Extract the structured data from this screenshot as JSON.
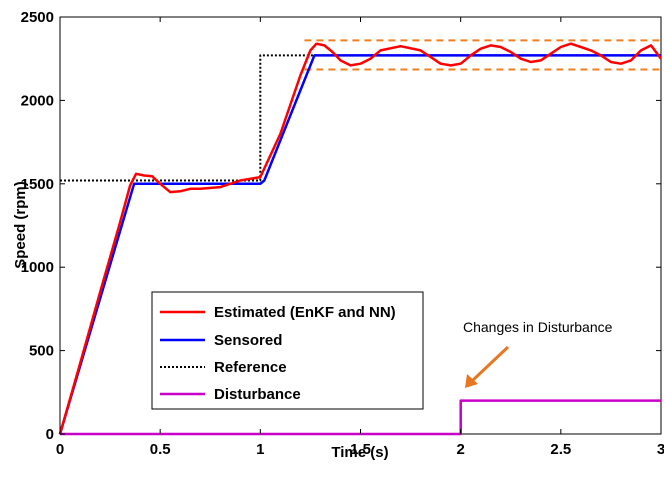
{
  "chart_data": {
    "type": "line",
    "xlabel": "Time (s)",
    "ylabel": "Speed (rpm)",
    "xlim": [
      0,
      3
    ],
    "ylim": [
      0,
      2500
    ],
    "xticks": [
      "0",
      "0.5",
      "1",
      "1.5",
      "2",
      "2.5",
      "3"
    ],
    "yticks": [
      "0",
      "500",
      "1000",
      "1500",
      "2000",
      "2500"
    ],
    "grid": false,
    "legend_position": "bottom-left",
    "series": [
      {
        "name": "Estimated (EnKF and NN)",
        "color": "#ff0000",
        "style": "solid",
        "x": [
          0,
          0.1,
          0.2,
          0.3,
          0.35,
          0.38,
          0.42,
          0.46,
          0.5,
          0.55,
          0.6,
          0.65,
          0.7,
          0.8,
          0.9,
          1.0,
          1.1,
          1.2,
          1.25,
          1.28,
          1.32,
          1.36,
          1.4,
          1.45,
          1.5,
          1.55,
          1.6,
          1.7,
          1.8,
          1.85,
          1.9,
          1.95,
          2.0,
          2.05,
          2.1,
          2.15,
          2.2,
          2.25,
          2.3,
          2.35,
          2.4,
          2.45,
          2.5,
          2.55,
          2.6,
          2.65,
          2.7,
          2.75,
          2.8,
          2.85,
          2.9,
          2.95,
          3.0
        ],
        "y": [
          0,
          420,
          850,
          1270,
          1490,
          1560,
          1550,
          1545,
          1500,
          1450,
          1455,
          1470,
          1470,
          1480,
          1520,
          1540,
          1800,
          2150,
          2300,
          2340,
          2330,
          2290,
          2240,
          2210,
          2220,
          2250,
          2300,
          2325,
          2300,
          2260,
          2220,
          2210,
          2220,
          2270,
          2310,
          2330,
          2320,
          2290,
          2250,
          2230,
          2240,
          2280,
          2320,
          2340,
          2320,
          2300,
          2270,
          2230,
          2220,
          2240,
          2300,
          2330,
          2250
        ]
      },
      {
        "name": "Sensored",
        "color": "#0000ff",
        "style": "solid",
        "x": [
          0,
          0.37,
          1.0,
          1.02,
          1.27,
          3.0
        ],
        "y": [
          0,
          1500,
          1500,
          1520,
          2270,
          2270
        ]
      },
      {
        "name": "Reference",
        "color": "#000000",
        "style": "dotted",
        "x": [
          0,
          1.0,
          1.0,
          3.0
        ],
        "y": [
          1520,
          1520,
          2270,
          2270
        ]
      },
      {
        "name": "Disturbance",
        "color": "#c800c8",
        "style": "solid",
        "x": [
          0,
          2.0,
          2.0,
          3.0
        ],
        "y": [
          0,
          0,
          200,
          200
        ]
      }
    ],
    "bands": [
      {
        "y": 2360,
        "color": "#f07f20",
        "style": "dashed",
        "x_from": 1.22,
        "x_to": 3.0
      },
      {
        "y": 2185,
        "color": "#f07f20",
        "style": "dashed",
        "x_from": 1.22,
        "x_to": 3.0
      }
    ],
    "annotation": {
      "text": "Changes in Disturbance",
      "arrow_color": "#e87722",
      "arrow_to": [
        2.02,
        220
      ]
    }
  }
}
